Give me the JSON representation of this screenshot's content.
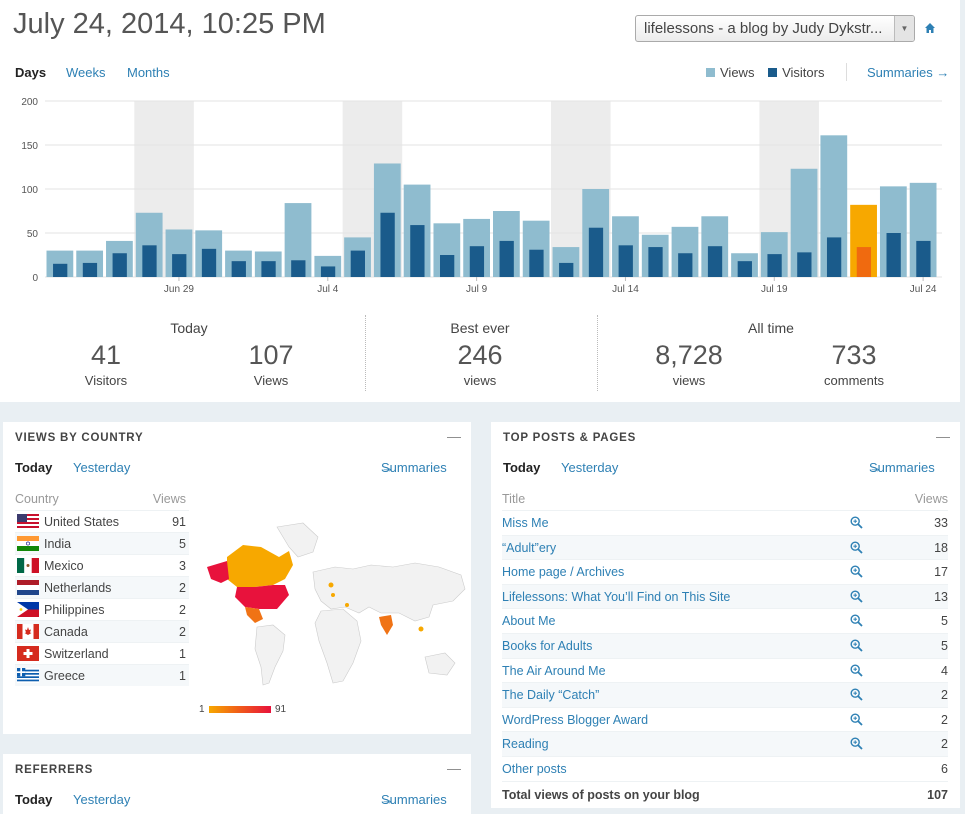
{
  "header": {
    "title": "July 24, 2014, 10:25 PM",
    "blog_select": "lifelessons - a blog by Judy Dykstr..."
  },
  "period_tabs": {
    "days": "Days",
    "weeks": "Weeks",
    "months": "Months"
  },
  "legend": {
    "views": "Views",
    "visitors": "Visitors",
    "summaries": "Summaries"
  },
  "colors": {
    "views": "#8fbccf",
    "visitors": "#1a5b8b",
    "today_views": "#f7a800",
    "today_visitors": "#f06a0f",
    "link": "#2e80b4"
  },
  "chart_data": {
    "type": "bar",
    "ylim": [
      0,
      200
    ],
    "yticks": [
      "0",
      "50",
      "100",
      "150",
      "200"
    ],
    "xtick_labels": [
      "Jun 29",
      "Jul 4",
      "Jul 9",
      "Jul 14",
      "Jul 19",
      "Jul 24"
    ],
    "series": [
      {
        "name": "Views",
        "values": [
          30,
          30,
          41,
          73,
          54,
          53,
          30,
          29,
          84,
          24,
          45,
          129,
          105,
          61,
          66,
          75,
          64,
          34,
          100,
          69,
          48,
          57,
          69,
          27,
          51,
          123,
          161,
          82,
          103,
          107
        ]
      },
      {
        "name": "Visitors",
        "values": [
          15,
          16,
          27,
          36,
          26,
          32,
          18,
          18,
          19,
          12,
          30,
          73,
          59,
          25,
          35,
          41,
          31,
          16,
          56,
          36,
          34,
          27,
          35,
          18,
          26,
          28,
          45,
          34,
          50,
          41
        ]
      }
    ],
    "highlighted_index": 27
  },
  "stats": {
    "today": {
      "label": "Today",
      "visitors": "41",
      "visitors_label": "Visitors",
      "views": "107",
      "views_label": "Views"
    },
    "best": {
      "label": "Best ever",
      "views": "246",
      "views_label": "views"
    },
    "alltime": {
      "label": "All time",
      "views": "8,728",
      "views_label": "views",
      "comments": "733",
      "comments_label": "comments"
    }
  },
  "countries": {
    "title": "VIEWS BY COUNTRY",
    "today": "Today",
    "yesterday": "Yesterday",
    "summaries": "Summaries",
    "col_country": "Country",
    "col_views": "Views",
    "rows": [
      {
        "name": "United States",
        "views": "91"
      },
      {
        "name": "India",
        "views": "5"
      },
      {
        "name": "Mexico",
        "views": "3"
      },
      {
        "name": "Netherlands",
        "views": "2"
      },
      {
        "name": "Philippines",
        "views": "2"
      },
      {
        "name": "Canada",
        "views": "2"
      },
      {
        "name": "Switzerland",
        "views": "1"
      },
      {
        "name": "Greece",
        "views": "1"
      }
    ],
    "scale_min": "1",
    "scale_max": "91"
  },
  "posts": {
    "title": "TOP POSTS & PAGES",
    "today": "Today",
    "yesterday": "Yesterday",
    "summaries": "Summaries",
    "col_title": "Title",
    "col_views": "Views",
    "rows": [
      {
        "title": "Miss Me",
        "views": "33"
      },
      {
        "title": "“Adult”ery",
        "views": "18"
      },
      {
        "title": "Home page / Archives",
        "views": "17"
      },
      {
        "title": "Lifelessons: What You’ll Find on This Site",
        "views": "13"
      },
      {
        "title": "About Me",
        "views": "5"
      },
      {
        "title": "Books for Adults",
        "views": "5"
      },
      {
        "title": "The Air Around Me",
        "views": "4"
      },
      {
        "title": "The Daily “Catch”",
        "views": "2"
      },
      {
        "title": "WordPress Blogger Award",
        "views": "2"
      },
      {
        "title": "Reading",
        "views": "2"
      },
      {
        "title": "Other posts",
        "views": "6"
      }
    ],
    "total_label": "Total views of posts on your blog",
    "total_value": "107"
  },
  "referrers": {
    "title": "REFERRERS",
    "today": "Today",
    "yesterday": "Yesterday",
    "summaries": "Summaries"
  }
}
